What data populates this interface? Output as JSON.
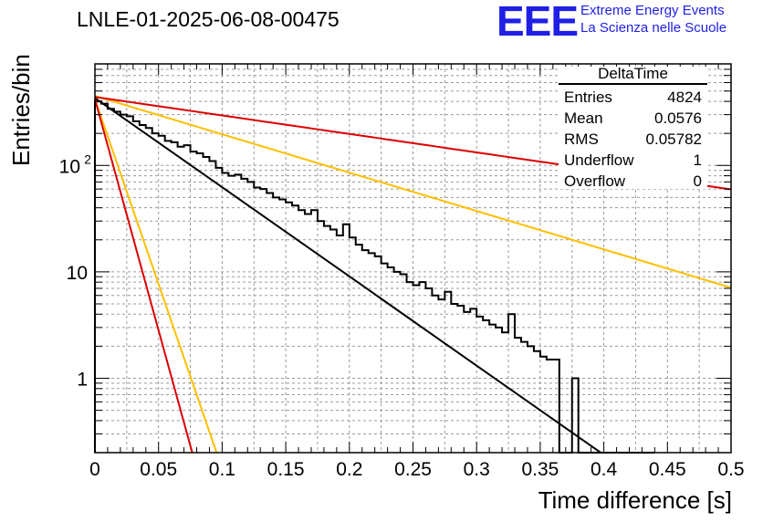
{
  "title": "LNLE-01-2025-06-08-00475",
  "logo": {
    "mark": "EEE",
    "line1": "Extreme Energy Events",
    "line2": "La Scienza nelle Scuole",
    "color": "#1f1fe6"
  },
  "stats": {
    "name": "DeltaTime",
    "rows": [
      {
        "label": "Entries",
        "value": "4824"
      },
      {
        "label": "Mean",
        "value": "0.0576"
      },
      {
        "label": "RMS",
        "value": "0.05782"
      },
      {
        "label": "Underflow",
        "value": "1"
      },
      {
        "label": "Overflow",
        "value": "0"
      }
    ]
  },
  "chart_data": {
    "type": "line",
    "xlabel": "Time difference [s]",
    "ylabel": "Entries/bin",
    "xlim": [
      0,
      0.5
    ],
    "ylim": [
      0.2,
      900
    ],
    "yscale": "log",
    "grid": true,
    "x_ticks": [
      "0",
      "0.05",
      "0.1",
      "0.15",
      "0.2",
      "0.25",
      "0.3",
      "0.35",
      "0.4",
      "0.45",
      "0.5"
    ],
    "y_ticks": [
      {
        "value": 1,
        "label": "1"
      },
      {
        "value": 10,
        "label": "10"
      },
      {
        "value": 100,
        "label": "10",
        "exp": "2"
      }
    ],
    "histogram": {
      "bin_width": 0.005,
      "color": "#000000",
      "counts": [
        400,
        380,
        340,
        320,
        300,
        290,
        260,
        240,
        225,
        200,
        190,
        170,
        165,
        150,
        155,
        135,
        130,
        120,
        110,
        95,
        85,
        80,
        82,
        75,
        70,
        62,
        60,
        55,
        50,
        48,
        45,
        42,
        38,
        35,
        38,
        30,
        27,
        25,
        22,
        28,
        21,
        18,
        16,
        15,
        14,
        12,
        11,
        10,
        9.5,
        8,
        7.5,
        8,
        7,
        6,
        5.5,
        6.5,
        5,
        4.8,
        4.2,
        4.5,
        3.8,
        3.5,
        3.2,
        3,
        2.7,
        4,
        2.4,
        2.2,
        2,
        1.8,
        1.6,
        1.5,
        1.5,
        0.1,
        0.1,
        1,
        0.1,
        0.1,
        0.1,
        0.1,
        0.1,
        0.1,
        0.1,
        0.1,
        0.1,
        0.1,
        0.1,
        0.1
      ]
    },
    "series": [
      {
        "color": "#000000",
        "y0": 430,
        "slope": 19.3,
        "x_end": 0.435
      },
      {
        "color": "#ffbf00",
        "y0": 450,
        "slope": 8.3,
        "x_end": 0.5
      },
      {
        "color": "#dd0000",
        "y0": 440,
        "slope": 4.0,
        "x_end": 0.5
      },
      {
        "color": "#ffbf00",
        "y0": 420,
        "slope": 80,
        "x_end": 0.1
      },
      {
        "color": "#dd0000",
        "y0": 420,
        "slope": 100,
        "x_end": 0.08
      }
    ]
  }
}
